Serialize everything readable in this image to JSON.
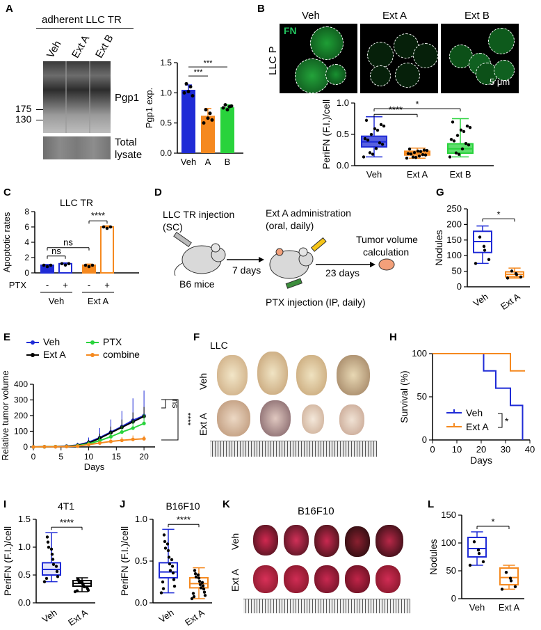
{
  "colors": {
    "veh": "#1f2bd6",
    "extA": "#f5891f",
    "extB": "#29d33c",
    "ptx": "#29d33c",
    "combine": "#f5891f",
    "extA_line": "#000000",
    "fn_green": "#22c55e"
  },
  "panels": {
    "A": "A",
    "B": "B",
    "C": "C",
    "D": "D",
    "E": "E",
    "F": "F",
    "G": "G",
    "H": "H",
    "I": "I",
    "J": "J",
    "K": "K",
    "L": "L"
  },
  "panelA": {
    "header": "adherent LLC TR",
    "lanes": [
      "Veh",
      "Ext A",
      "Ext B"
    ],
    "mw": [
      "175",
      "130"
    ],
    "band_label": "Pgp1",
    "total_label": [
      "Total",
      "lysate"
    ],
    "chart_data": {
      "type": "bar",
      "categories": [
        "Veh",
        "A",
        "B"
      ],
      "values": [
        1.05,
        0.62,
        0.76
      ],
      "errors": [
        0.08,
        0.12,
        0.04
      ],
      "points": [
        [
          1.0,
          1.15,
          1.02,
          1.1,
          0.95
        ],
        [
          0.5,
          0.72,
          0.58,
          0.66,
          0.55
        ],
        [
          0.75,
          0.8,
          0.72,
          0.77,
          0.78
        ]
      ],
      "ylabel": "Pgp1 exp.",
      "ylim": [
        0,
        1.5
      ],
      "yticks": [
        "0.0",
        "0.5",
        "1.0",
        "1.5"
      ],
      "sig": [
        "***",
        "***"
      ]
    }
  },
  "panelB": {
    "fn_label": "FN",
    "cols": [
      "Veh",
      "Ext A",
      "Ext B"
    ],
    "row_label": "LLC P",
    "scale": "5 μm",
    "chart_data": {
      "type": "boxplot",
      "categories": [
        "Veh",
        "Ext A",
        "Ext B"
      ],
      "median": [
        0.38,
        0.2,
        0.27
      ],
      "q1": [
        0.3,
        0.17,
        0.2
      ],
      "q3": [
        0.47,
        0.23,
        0.35
      ],
      "min": [
        0.14,
        0.12,
        0.14
      ],
      "max": [
        0.78,
        0.28,
        0.75
      ],
      "ylabel": "PeriFN (F.I.)/cell",
      "ylim": [
        0,
        1.0
      ],
      "yticks": [
        "0.0",
        "0.5",
        "1.0"
      ],
      "sig": [
        "****",
        "*"
      ]
    }
  },
  "panelC": {
    "title": "LLC TR",
    "ylabel": "Apoptotic rates",
    "ptx_label": "PTX",
    "minus": "-",
    "plus": "+",
    "groups": [
      "Veh",
      "Ext A"
    ],
    "chart_data": {
      "type": "bar",
      "categories": [
        "Veh -",
        "Veh +",
        "Ext A -",
        "Ext A +"
      ],
      "values": [
        1.0,
        1.2,
        1.0,
        6.0
      ],
      "errors": [
        0.1,
        0.1,
        0.15,
        0.15
      ],
      "ylim": [
        0,
        8
      ],
      "yticks": [
        "0",
        "2",
        "4",
        "6",
        "8"
      ],
      "sig": [
        "ns",
        "ns",
        "****"
      ]
    }
  },
  "panelD": {
    "step1": [
      "LLC TR injection",
      "(SC)"
    ],
    "mice": "B6 mice",
    "days1": "7 days",
    "step2": [
      "Ext A administration",
      "(oral, daily)"
    ],
    "days2": "23 days",
    "step3": [
      "Tumor volume",
      "calculation"
    ],
    "ptx": "PTX injection (IP, daily)"
  },
  "panelE": {
    "legend": [
      "Veh",
      "Ext A",
      "PTX",
      "combine"
    ],
    "ylabel": "Relative tumor volume",
    "xlabel": "Days",
    "sig": [
      "ns",
      "****"
    ],
    "chart_data": {
      "type": "line",
      "x": [
        0,
        2,
        4,
        6,
        8,
        10,
        12,
        14,
        16,
        18,
        20
      ],
      "series": [
        {
          "name": "Veh",
          "values": [
            0,
            1,
            2,
            5,
            12,
            30,
            60,
            95,
            130,
            170,
            200
          ],
          "err": [
            0,
            2,
            3,
            8,
            15,
            30,
            60,
            80,
            100,
            140,
            160
          ]
        },
        {
          "name": "Ext A",
          "values": [
            0,
            1,
            2,
            4,
            10,
            25,
            55,
            90,
            125,
            160,
            195
          ],
          "err": [
            0,
            1,
            2,
            5,
            10,
            20,
            30,
            40,
            50,
            60,
            60
          ]
        },
        {
          "name": "PTX",
          "values": [
            0,
            1,
            2,
            3,
            8,
            20,
            40,
            65,
            95,
            120,
            150
          ],
          "err": [
            0,
            1,
            2,
            4,
            8,
            15,
            25,
            30,
            40,
            50,
            60
          ]
        },
        {
          "name": "combine",
          "values": [
            0,
            1,
            1,
            2,
            5,
            15,
            25,
            35,
            42,
            48,
            52
          ],
          "err": [
            0,
            1,
            1,
            2,
            4,
            8,
            12,
            15,
            20,
            25,
            20
          ]
        }
      ],
      "xlim": [
        0,
        22
      ],
      "xticks": [
        "0",
        "5",
        "10",
        "15",
        "20"
      ],
      "ylim": [
        0,
        400
      ],
      "yticks": [
        "0",
        "100",
        "200",
        "300",
        "400"
      ]
    }
  },
  "panelF": {
    "title": "LLC",
    "rows": [
      "Veh",
      "Ext A"
    ]
  },
  "panelG": {
    "ylabel": "Nodules",
    "sig": "*",
    "chart_data": {
      "type": "boxplot",
      "categories": [
        "Veh",
        "Ext A"
      ],
      "median": [
        145,
        40
      ],
      "q1": [
        110,
        32
      ],
      "q3": [
        178,
        48
      ],
      "min": [
        75,
        28
      ],
      "max": [
        195,
        60
      ],
      "ylim": [
        0,
        250
      ],
      "yticks": [
        "0",
        "50",
        "100",
        "150",
        "200",
        "250"
      ]
    }
  },
  "panelH": {
    "ylabel": "Survival (%)",
    "xlabel": "Days",
    "legend": [
      "Veh",
      "Ext A"
    ],
    "sig": "*",
    "chart_data": {
      "type": "line",
      "series": [
        {
          "name": "Veh",
          "x": [
            0,
            21,
            21,
            26,
            26,
            32,
            32,
            37,
            37
          ],
          "y": [
            100,
            100,
            80,
            80,
            60,
            60,
            40,
            40,
            0
          ]
        },
        {
          "name": "Ext A",
          "x": [
            0,
            32,
            32,
            38
          ],
          "y": [
            100,
            100,
            80,
            80
          ]
        }
      ],
      "xlim": [
        0,
        40
      ],
      "xticks": [
        "0",
        "10",
        "20",
        "30",
        "40"
      ],
      "ylim": [
        0,
        100
      ],
      "yticks": [
        "0",
        "50",
        "100"
      ]
    }
  },
  "panelI": {
    "title": "4T1",
    "ylabel": "PeriFN (F.I.)/cell",
    "sig": "****",
    "chart_data": {
      "type": "boxplot",
      "categories": [
        "Veh",
        "Ext A"
      ],
      "median": [
        0.6,
        0.35
      ],
      "q1": [
        0.5,
        0.3
      ],
      "q3": [
        0.72,
        0.4
      ],
      "min": [
        0.38,
        0.2
      ],
      "max": [
        1.26,
        0.45
      ],
      "ylim": [
        0,
        1.5
      ],
      "yticks": [
        "0.0",
        "0.5",
        "1.0",
        "1.5"
      ]
    }
  },
  "panelJ": {
    "title": "B16F10",
    "ylabel": "PeriFN (F.I.)/cell",
    "sig": "****",
    "chart_data": {
      "type": "boxplot",
      "categories": [
        "Veh",
        "Ext A"
      ],
      "median": [
        0.37,
        0.23
      ],
      "q1": [
        0.3,
        0.18
      ],
      "q3": [
        0.48,
        0.3
      ],
      "min": [
        0.12,
        0.05
      ],
      "max": [
        0.88,
        0.42
      ],
      "ylim": [
        0,
        1.0
      ],
      "yticks": [
        "0.0",
        "0.5",
        "1.0"
      ]
    }
  },
  "panelK": {
    "title": "B16F10",
    "rows": [
      "Veh",
      "Ext A"
    ]
  },
  "panelL": {
    "ylabel": "Nodules",
    "sig": "*",
    "chart_data": {
      "type": "boxplot",
      "categories": [
        "Veh",
        "Ext A"
      ],
      "median": [
        90,
        38
      ],
      "q1": [
        75,
        25
      ],
      "q3": [
        110,
        55
      ],
      "min": [
        60,
        17
      ],
      "max": [
        120,
        60
      ],
      "ylim": [
        0,
        150
      ],
      "yticks": [
        "0",
        "50",
        "100",
        "150"
      ]
    }
  }
}
